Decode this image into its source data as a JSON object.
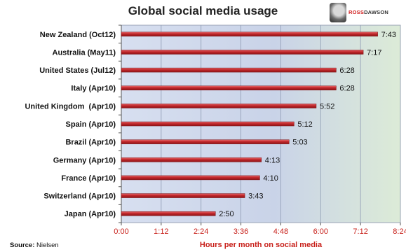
{
  "chart_data": {
    "type": "bar",
    "orientation": "horizontal",
    "title": "Global social media usage",
    "xlabel": "Hours per month on social media",
    "ylabel": "",
    "categories": [
      "New Zealand (Oct12)",
      "Australia (May11)",
      "United States (Jul12)",
      "Italy (Apr10)",
      "United Kingdom  (Apr10)",
      "Spain (Apr10)",
      "Brazil (Apr10)",
      "Germany (Apr10)",
      "France (Apr10)",
      "Switzerland (Apr10)",
      "Japan (Apr10)"
    ],
    "values": [
      463,
      437,
      388,
      388,
      352,
      312,
      303,
      253,
      250,
      223,
      170
    ],
    "value_labels": [
      "7:43",
      "7:17",
      "6:28",
      "6:28",
      "5:52",
      "5:12",
      "5:03",
      "4:13",
      "4:10",
      "3:43",
      "2:50"
    ],
    "xlim": [
      0,
      504
    ],
    "xticks": [
      0,
      72,
      144,
      216,
      288,
      360,
      432,
      504
    ],
    "xtick_labels": [
      "0:00",
      "1:12",
      "2:24",
      "3:36",
      "4:48",
      "6:00",
      "7:12",
      "8:24"
    ],
    "grid": true,
    "bar_color": "#c0262a",
    "text_accent_color": "#c8201a",
    "background_gradient": [
      "#d7dff0",
      "#dcebd7"
    ]
  },
  "footer": {
    "source_prefix": "Source:",
    "source_value": "Nielsen"
  },
  "logo": {
    "icon": "portrait-icon",
    "text_accent": "ROSS",
    "text_rest": "DAWSON"
  }
}
